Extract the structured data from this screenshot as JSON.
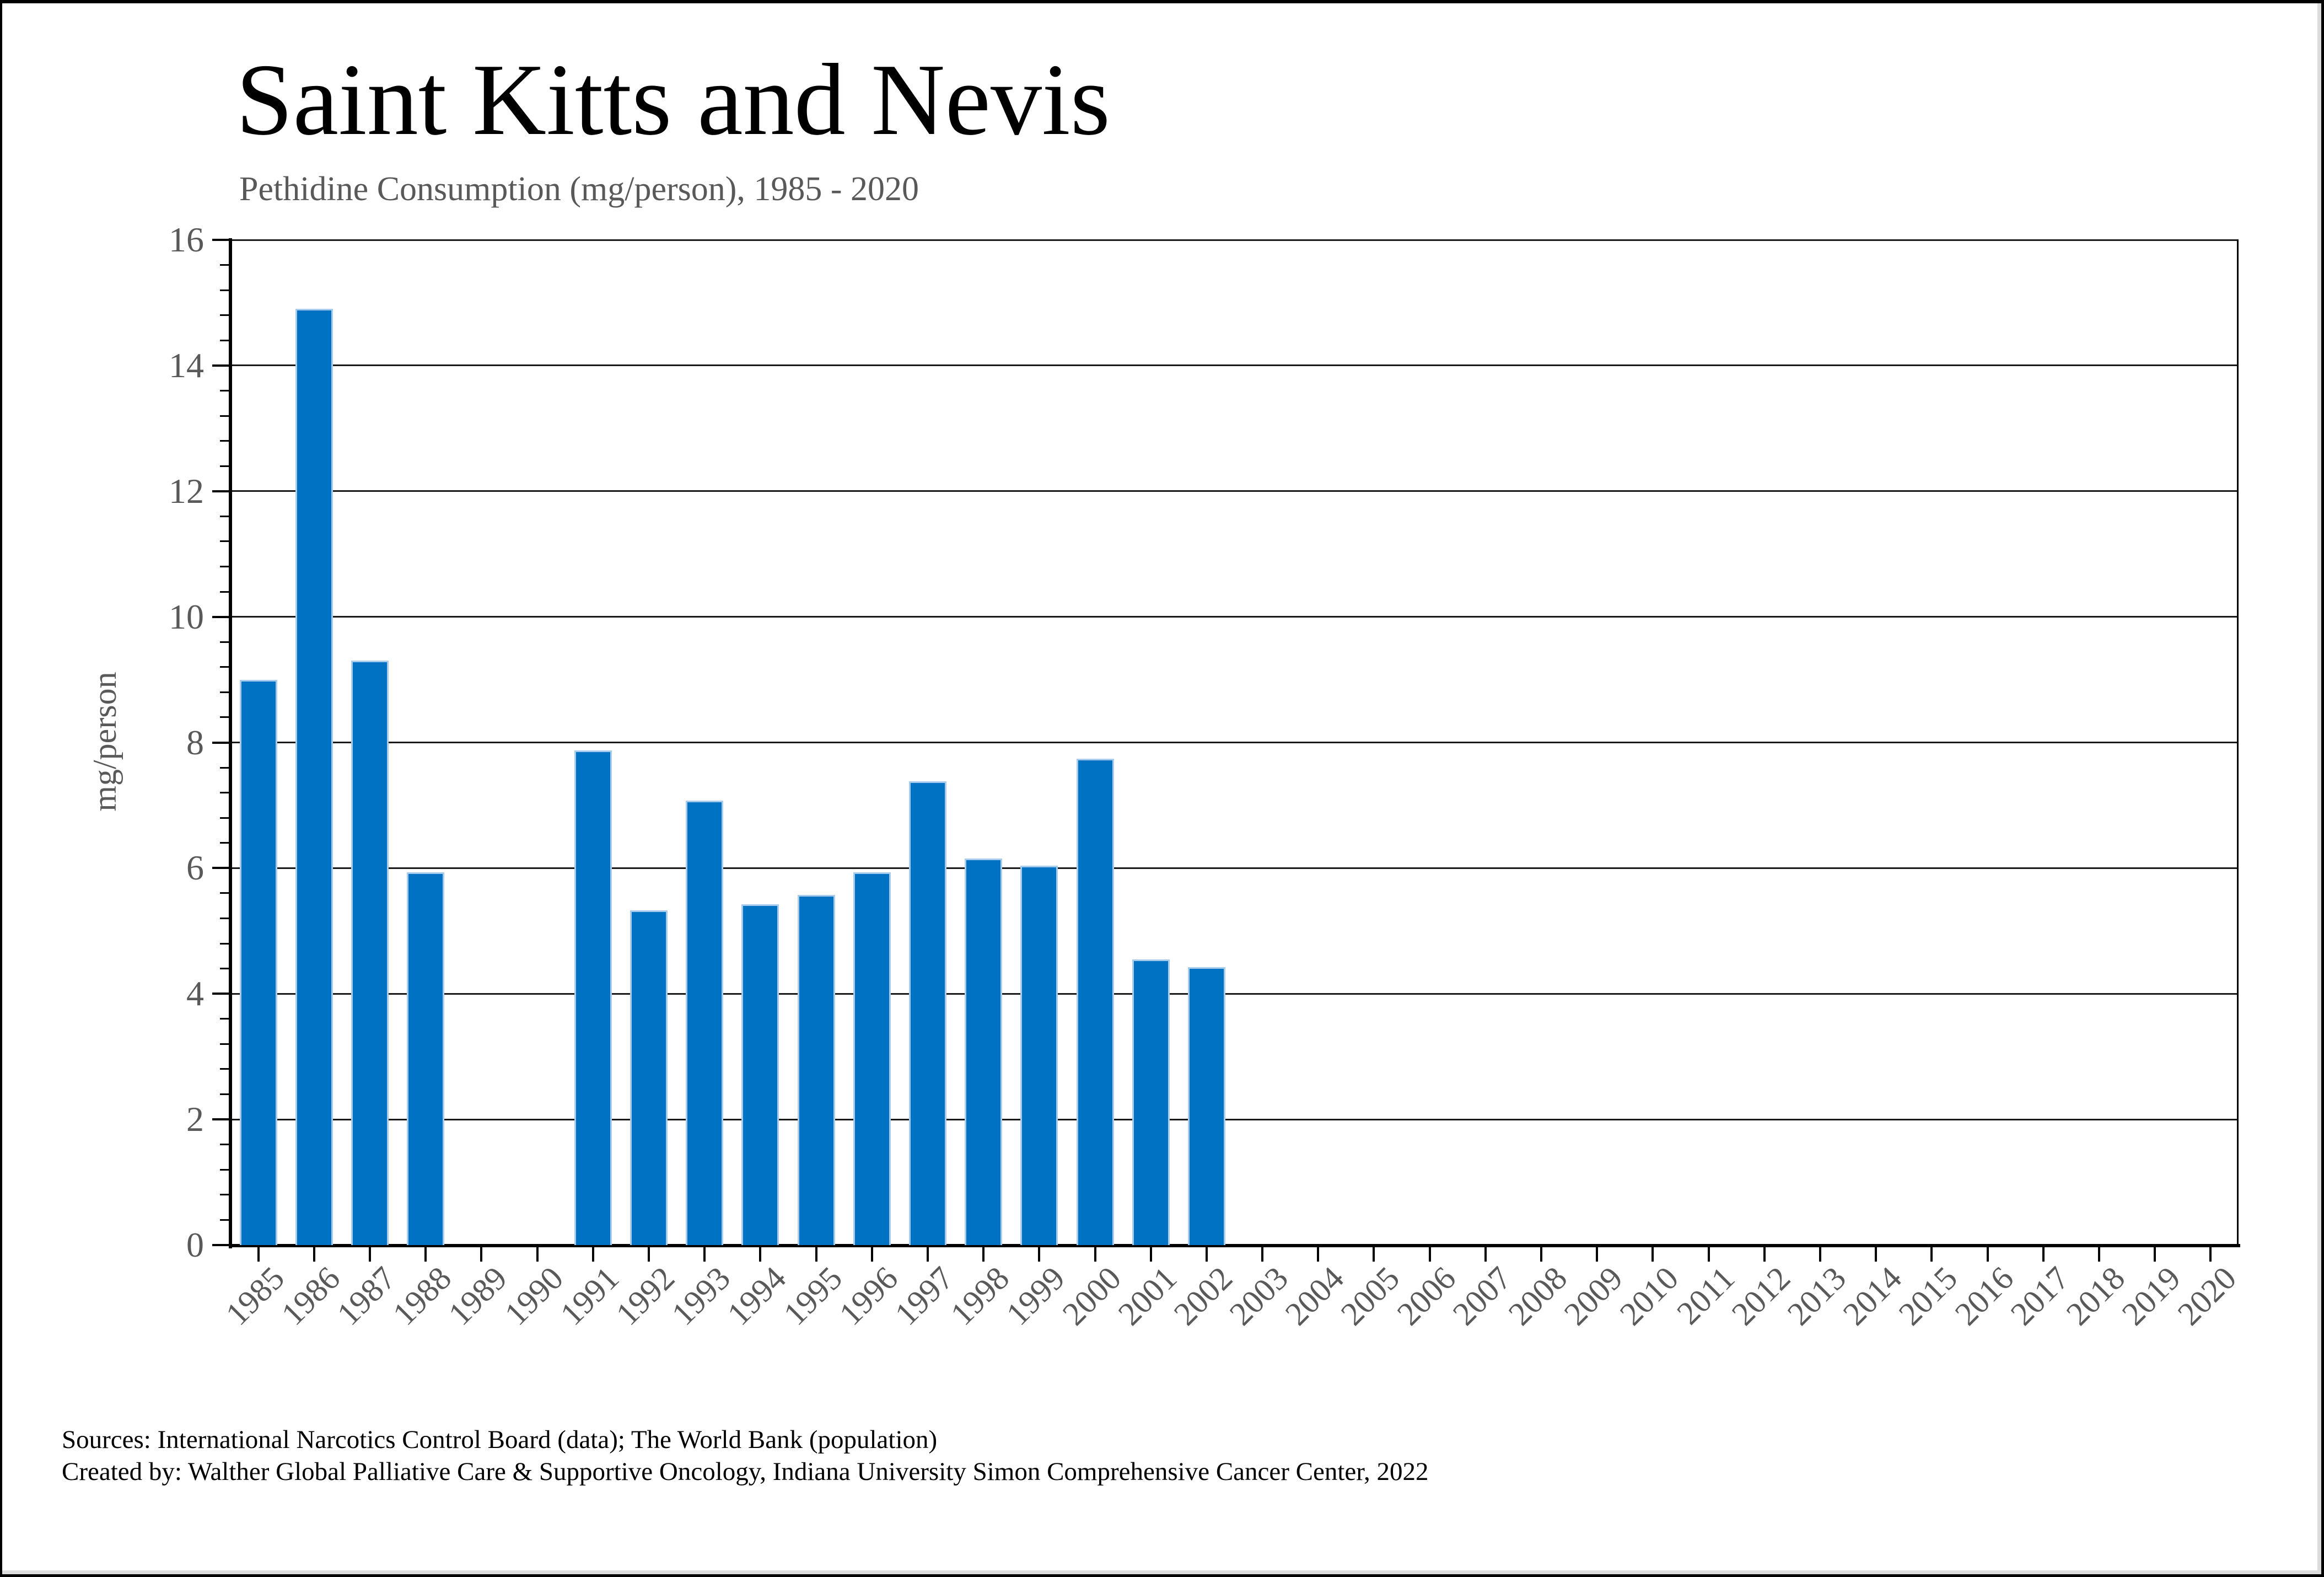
{
  "header": {
    "title": "Saint Kitts and Nevis",
    "subtitle": "Pethidine Consumption (mg/person), 1985 - 2020"
  },
  "chart_data": {
    "type": "bar",
    "title": "Saint Kitts and Nevis",
    "subtitle": "Pethidine Consumption (mg/person), 1985 - 2020",
    "xlabel": "",
    "ylabel": "mg/person",
    "categories": [
      "1985",
      "1986",
      "1987",
      "1988",
      "1989",
      "1990",
      "1991",
      "1992",
      "1993",
      "1994",
      "1995",
      "1996",
      "1997",
      "1998",
      "1999",
      "2000",
      "2001",
      "2002",
      "2003",
      "2004",
      "2005",
      "2006",
      "2007",
      "2008",
      "2009",
      "2010",
      "2011",
      "2012",
      "2013",
      "2014",
      "2015",
      "2016",
      "2017",
      "2018",
      "2019",
      "2020"
    ],
    "values": [
      9.0,
      14.9,
      9.3,
      5.93,
      0,
      0,
      7.87,
      5.33,
      7.07,
      5.42,
      5.57,
      5.93,
      7.38,
      6.15,
      6.04,
      7.74,
      4.55,
      4.42,
      0,
      0,
      0,
      0,
      0,
      0,
      0,
      0,
      0,
      0,
      0,
      0,
      0,
      0,
      0,
      0,
      0,
      0
    ],
    "ylim": [
      0,
      16
    ],
    "ytick_interval": 2,
    "yminor_interval": 0.4,
    "ytick_labels": [
      "0",
      "2",
      "4",
      "6",
      "8",
      "10",
      "12",
      "14",
      "16"
    ],
    "grid": "horizontal-major",
    "legend": "none",
    "bar_color": "#0072C3",
    "bar_border_color": "#A6CBEC",
    "axis_label_color": "#595959",
    "line_color": "#000000"
  },
  "footer": {
    "line1": "Sources: International Narcotics Control Board (data); The World Bank (population)",
    "line2": "Created by: Walther Global Palliative Care & Supportive Oncology, Indiana University Simon Comprehensive Cancer Center, 2022"
  }
}
